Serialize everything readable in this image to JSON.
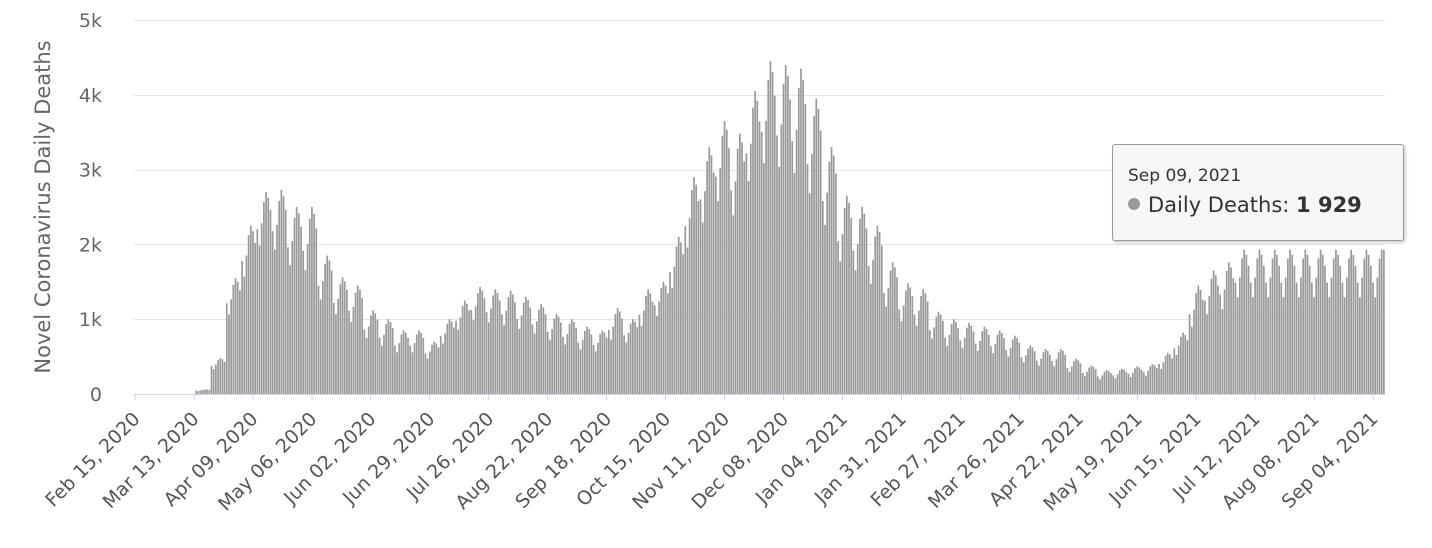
{
  "chart_data": {
    "type": "bar",
    "title": "",
    "ylabel": "Novel Coronavirus Daily Deaths",
    "xlabel": "",
    "ylim": [
      0,
      5000
    ],
    "yticks": [
      0,
      1000,
      2000,
      3000,
      4000,
      5000
    ],
    "ytick_labels": [
      "0",
      "1k",
      "2k",
      "3k",
      "4k",
      "5k"
    ],
    "xtick_labels": [
      "Feb 15, 2020",
      "Mar 13, 2020",
      "Apr 09, 2020",
      "May 06, 2020",
      "Jun 02, 2020",
      "Jun 29, 2020",
      "Jul 26, 2020",
      "Aug 22, 2020",
      "Sep 18, 2020",
      "Oct 15, 2020",
      "Nov 11, 2020",
      "Dec 08, 2020",
      "Jan 04, 2021",
      "Jan 31, 2021",
      "Feb 27, 2021",
      "Mar 26, 2021",
      "Apr 22, 2021",
      "May 19, 2021",
      "Jun 15, 2021",
      "Jul 12, 2021",
      "Aug 08, 2021",
      "Sep 04, 2021"
    ],
    "grid": true,
    "bar_color": "#999999",
    "series": [
      {
        "name": "Daily Deaths",
        "x_start": "2020-02-15",
        "x_end": "2021-09-09",
        "weekly_peaks": [
          0,
          0,
          0,
          0,
          60,
          480,
          1550,
          2250,
          2700,
          2730,
          2500,
          2500,
          1850,
          1560,
          1450,
          1120,
          1000,
          850,
          850,
          700,
          1000,
          1250,
          1430,
          1400,
          1380,
          1300,
          1200,
          1070,
          1000,
          900,
          850,
          1150,
          1000,
          1400,
          1500,
          2100,
          2900,
          3300,
          3650,
          3480,
          4050,
          4450,
          4400,
          4350,
          3950,
          3300,
          2650,
          2500,
          2250,
          1760,
          1480,
          1400,
          1100,
          1000,
          950,
          900,
          850,
          780,
          650,
          600,
          600,
          470,
          380,
          320,
          340,
          370,
          400,
          550,
          820,
          1450,
          1650,
          1760,
          1929
        ],
        "weekly_lows": [
          0,
          0,
          0,
          0,
          30,
          250,
          800,
          1200,
          1600,
          1500,
          1300,
          1200,
          950,
          800,
          700,
          550,
          450,
          400,
          400,
          350,
          500,
          650,
          750,
          720,
          680,
          640,
          600,
          540,
          480,
          430,
          420,
          500,
          520,
          650,
          800,
          1050,
          1450,
          1750,
          2000,
          1800,
          2200,
          2350,
          2300,
          2200,
          2000,
          1700,
          1300,
          1200,
          1050,
          850,
          700,
          650,
          550,
          450,
          430,
          400,
          380,
          350,
          300,
          260,
          250,
          200,
          160,
          130,
          140,
          150,
          160,
          220,
          360,
          600,
          750,
          800,
          950
        ]
      }
    ],
    "tooltip": {
      "date": "Sep 09, 2021",
      "series_label": "Daily Deaths:",
      "value": "1 929"
    }
  }
}
